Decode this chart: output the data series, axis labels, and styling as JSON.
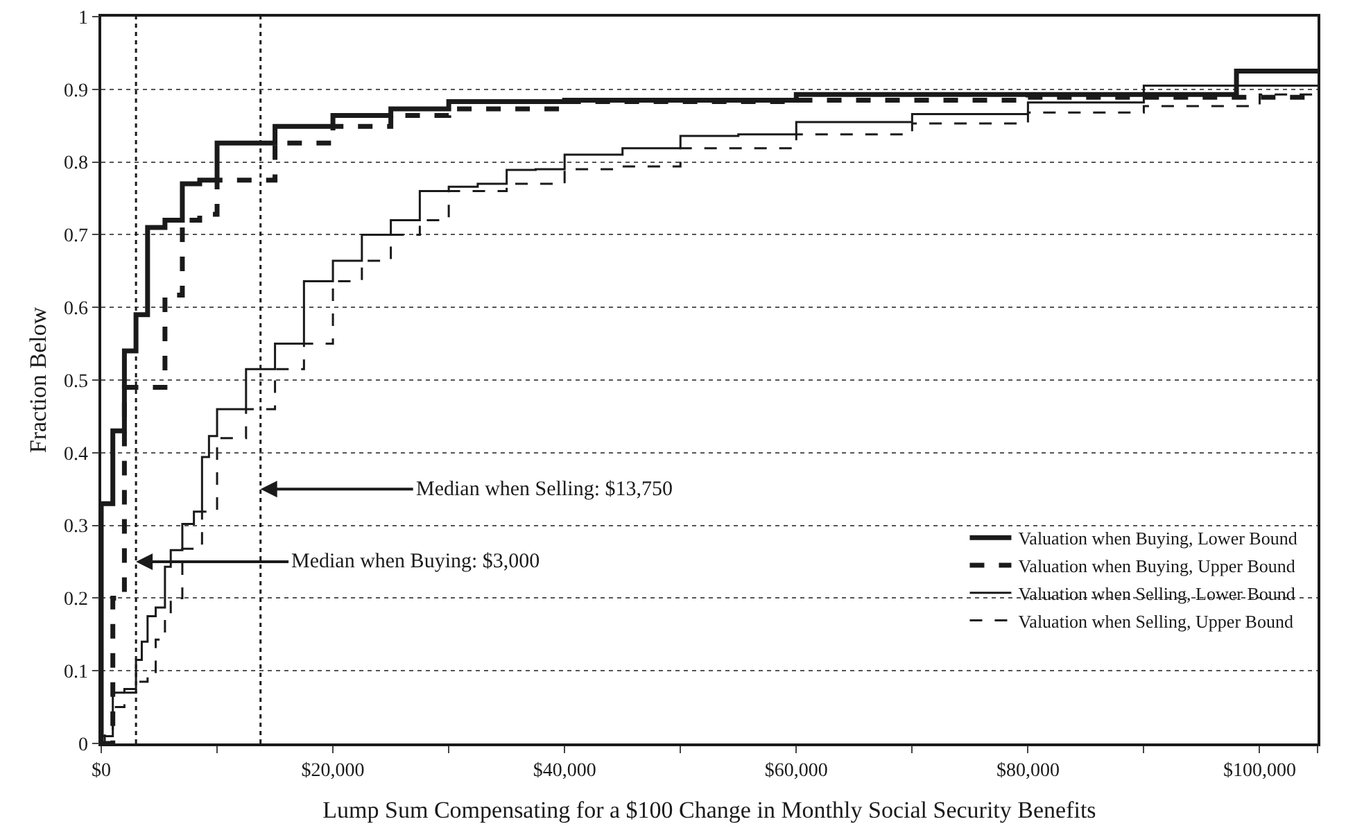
{
  "chart_data": {
    "type": "step",
    "xlabel": "Lump Sum Compensating for a $100 Change in Monthly Social Security Benefits",
    "ylabel": "Fraction Below",
    "xlim": [
      0,
      105000
    ],
    "ylim": [
      0,
      1
    ],
    "xticks": [
      {
        "value": 0,
        "label": "$0"
      },
      {
        "value": 10000,
        "label": null
      },
      {
        "value": 20000,
        "label": "$20,000"
      },
      {
        "value": 30000,
        "label": null
      },
      {
        "value": 40000,
        "label": "$40,000"
      },
      {
        "value": 50000,
        "label": null
      },
      {
        "value": 60000,
        "label": "$60,000"
      },
      {
        "value": 70000,
        "label": null
      },
      {
        "value": 80000,
        "label": "$80,000"
      },
      {
        "value": 90000,
        "label": null
      },
      {
        "value": 100000,
        "label": "$100,000"
      },
      {
        "value": 105000,
        "label": null
      }
    ],
    "yticks": [
      0,
      0.1,
      0.2,
      0.3,
      0.4,
      0.5,
      0.6,
      0.7,
      0.8,
      0.9,
      1
    ],
    "grid": "y",
    "legend": "bottom right",
    "series": [
      {
        "name": "Valuation when Buying, Lower Bound",
        "color": "#1a1a1a",
        "line_style": "solid",
        "x": [
          0,
          0,
          1000,
          2000,
          3000,
          4000,
          5500,
          7000,
          8500,
          10000,
          15000,
          20000,
          25000,
          30000,
          40000,
          60000,
          98000,
          105000
        ],
        "values": [
          0,
          0.33,
          0.43,
          0.54,
          0.59,
          0.71,
          0.72,
          0.77,
          0.775,
          0.826,
          0.849,
          0.864,
          0.873,
          0.883,
          0.885,
          0.893,
          0.925,
          0.925
        ]
      },
      {
        "name": "Valuation when Buying, Upper Bound",
        "color": "#1a1a1a",
        "line_style": "dashed",
        "x": [
          0,
          1000,
          2000,
          5500,
          7000,
          8500,
          10000,
          15000,
          20000,
          25000,
          30000,
          40000,
          60000,
          80000,
          105000
        ],
        "values": [
          0,
          0.2,
          0.49,
          0.617,
          0.72,
          0.728,
          0.775,
          0.826,
          0.849,
          0.864,
          0.873,
          0.883,
          0.885,
          0.889,
          0.889
        ]
      },
      {
        "name": "Valuation when Selling, Lower Bound",
        "color": "#1a1a1a",
        "line_style": "solid",
        "x": [
          0,
          1000,
          2000,
          3000,
          3500,
          4000,
          4700,
          5500,
          6000,
          7000,
          8000,
          8700,
          9300,
          10000,
          12500,
          15000,
          17500,
          20000,
          22500,
          25000,
          27500,
          30000,
          32500,
          35000,
          37500,
          40000,
          45000,
          50000,
          55000,
          60000,
          70000,
          80000,
          90000,
          105000
        ],
        "values": [
          0.01,
          0.07,
          0.075,
          0.115,
          0.14,
          0.175,
          0.187,
          0.243,
          0.266,
          0.302,
          0.319,
          0.394,
          0.423,
          0.46,
          0.515,
          0.55,
          0.636,
          0.664,
          0.7,
          0.72,
          0.76,
          0.766,
          0.77,
          0.789,
          0.79,
          0.81,
          0.819,
          0.836,
          0.838,
          0.855,
          0.866,
          0.882,
          0.905,
          0.905
        ]
      },
      {
        "name": "Valuation when Selling, Upper Bound",
        "color": "#1a1a1a",
        "line_style": "dashed",
        "x": [
          0,
          300,
          1000,
          2000,
          3000,
          4000,
          4700,
          5500,
          6000,
          7000,
          8000,
          8700,
          10000,
          12500,
          15000,
          17500,
          20000,
          22500,
          25000,
          27500,
          30000,
          35000,
          40000,
          45000,
          50000,
          60000,
          70000,
          80000,
          90000,
          100000,
          105000
        ],
        "values": [
          0,
          0.02,
          0.05,
          0.07,
          0.085,
          0.096,
          0.143,
          0.175,
          0.2,
          0.268,
          0.275,
          0.319,
          0.42,
          0.46,
          0.515,
          0.55,
          0.636,
          0.664,
          0.7,
          0.72,
          0.76,
          0.77,
          0.79,
          0.794,
          0.819,
          0.838,
          0.853,
          0.868,
          0.877,
          0.893,
          0.893
        ]
      }
    ],
    "ref_lines": [
      {
        "axis": "x",
        "value": 3000,
        "line_style": "dotted",
        "color": "#1a1a1a"
      },
      {
        "axis": "x",
        "value": 13750,
        "line_style": "dotted",
        "color": "#1a1a1a"
      }
    ],
    "annotations": [
      {
        "text": "Median when Selling: $13,750",
        "x": 13750,
        "y": 0.35
      },
      {
        "text": "Median when Buying: $3,000",
        "x": 3000,
        "y": 0.25
      }
    ]
  }
}
